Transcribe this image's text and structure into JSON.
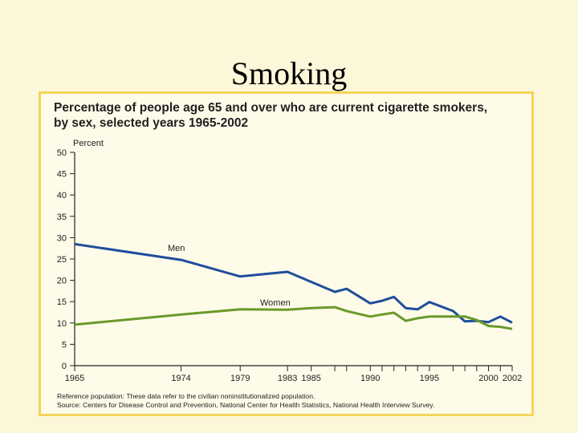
{
  "slide": {
    "title": "Smoking"
  },
  "chart_data": {
    "type": "line",
    "title_line1": "Percentage of people age 65 and over who are current cigarette smokers,",
    "title_line2": "by sex, selected years 1965-2002",
    "ylabel": "Percent",
    "xlabel": "",
    "ylim": [
      0,
      50
    ],
    "xlim": [
      1965,
      2002
    ],
    "yticks": [
      0,
      5,
      10,
      15,
      20,
      25,
      30,
      35,
      40,
      45,
      50
    ],
    "xticks_major": [
      {
        "value": 1965,
        "label": "1965"
      },
      {
        "value": 1974,
        "label": "1974"
      },
      {
        "value": 1979,
        "label": "1979"
      },
      {
        "value": 1983,
        "label": "1983"
      },
      {
        "value": 1985,
        "label": "1985"
      },
      {
        "value": 1990,
        "label": "1990"
      },
      {
        "value": 1995,
        "label": "1995"
      },
      {
        "value": 2000,
        "label": "2000"
      },
      {
        "value": 2002,
        "label": "2002"
      }
    ],
    "xticks_minor": [
      1987,
      1988,
      1991,
      1992,
      1993,
      1994,
      1997,
      1998,
      1999,
      2001
    ],
    "series": [
      {
        "name": "Men",
        "color": "#1f4e9c",
        "points": [
          [
            1965,
            28.5
          ],
          [
            1974,
            24.8
          ],
          [
            1979,
            20.9
          ],
          [
            1983,
            22.0
          ],
          [
            1987,
            17.3
          ],
          [
            1988,
            18.0
          ],
          [
            1990,
            14.6
          ],
          [
            1991,
            15.2
          ],
          [
            1992,
            16.1
          ],
          [
            1993,
            13.5
          ],
          [
            1994,
            13.2
          ],
          [
            1995,
            14.9
          ],
          [
            1997,
            12.8
          ],
          [
            1998,
            10.4
          ],
          [
            1999,
            10.5
          ],
          [
            2000,
            10.2
          ],
          [
            2001,
            11.5
          ],
          [
            2002,
            10.1
          ]
        ]
      },
      {
        "name": "Women",
        "color": "#6a9a2a",
        "points": [
          [
            1965,
            9.6
          ],
          [
            1974,
            12.0
          ],
          [
            1979,
            13.2
          ],
          [
            1983,
            13.1
          ],
          [
            1985,
            13.5
          ],
          [
            1987,
            13.7
          ],
          [
            1988,
            12.8
          ],
          [
            1990,
            11.5
          ],
          [
            1991,
            12.0
          ],
          [
            1992,
            12.4
          ],
          [
            1993,
            10.5
          ],
          [
            1994,
            11.1
          ],
          [
            1995,
            11.5
          ],
          [
            1997,
            11.5
          ],
          [
            1998,
            11.5
          ],
          [
            1999,
            10.7
          ],
          [
            2000,
            9.3
          ],
          [
            2001,
            9.1
          ],
          [
            2002,
            8.6
          ]
        ]
      }
    ],
    "annotations": [
      {
        "text": "Men",
        "series": "Men"
      },
      {
        "text": "Women",
        "series": "Women"
      }
    ],
    "notes": {
      "reference": "Reference population: These data refer to the civilian noninstitutionalized population.",
      "source": "Source: Centers for Disease Control and Prevention, National Center for Health Statistics, National Health Interview Survey."
    }
  }
}
